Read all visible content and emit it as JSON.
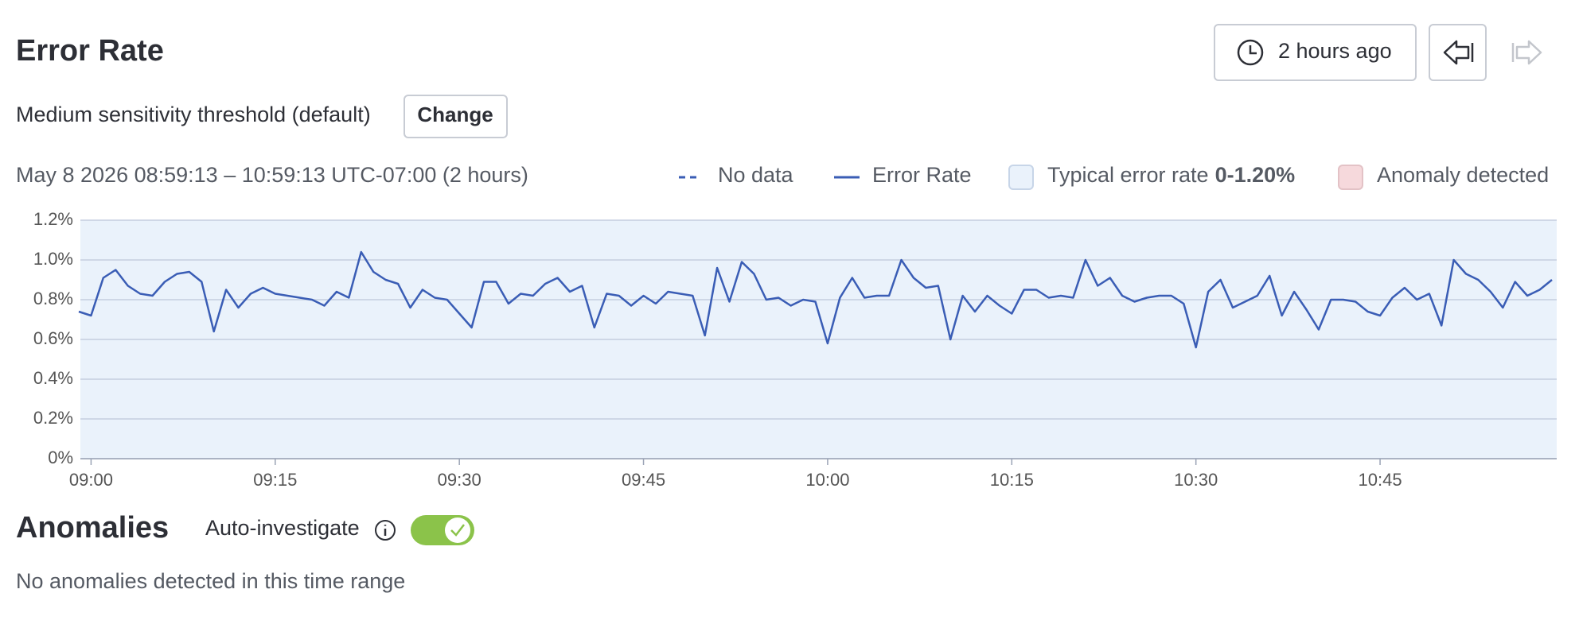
{
  "header": {
    "title": "Error Rate",
    "time_button": "2 hours ago"
  },
  "threshold": {
    "text": "Medium sensitivity threshold (default)",
    "button": "Change"
  },
  "chart_data": {
    "type": "line",
    "subtitle": "May 8 2026 08:59:13 – 10:59:13 UTC-07:00 (2 hours)",
    "legend": {
      "no_data": "No data",
      "typical": "Typical error rate",
      "typical_range": "0-1.20%",
      "anomaly": "Anomaly detected"
    },
    "band": [
      0,
      1.2
    ],
    "band_color": "#eaf2fb",
    "anomaly_color": "#f6d9dc",
    "x": [
      "08:59",
      "09:00",
      "09:01",
      "09:02",
      "09:03",
      "09:04",
      "09:05",
      "09:06",
      "09:07",
      "09:08",
      "09:09",
      "09:10",
      "09:11",
      "09:12",
      "09:13",
      "09:14",
      "09:15",
      "09:16",
      "09:17",
      "09:18",
      "09:19",
      "09:20",
      "09:21",
      "09:22",
      "09:23",
      "09:24",
      "09:25",
      "09:26",
      "09:27",
      "09:28",
      "09:29",
      "09:30",
      "09:31",
      "09:32",
      "09:33",
      "09:34",
      "09:35",
      "09:36",
      "09:37",
      "09:38",
      "09:39",
      "09:40",
      "09:41",
      "09:42",
      "09:43",
      "09:44",
      "09:45",
      "09:46",
      "09:47",
      "09:48",
      "09:49",
      "09:50",
      "09:51",
      "09:52",
      "09:53",
      "09:54",
      "09:55",
      "09:56",
      "09:57",
      "09:58",
      "09:59",
      "10:00",
      "10:01",
      "10:02",
      "10:03",
      "10:04",
      "10:05",
      "10:06",
      "10:07",
      "10:08",
      "10:09",
      "10:10",
      "10:11",
      "10:12",
      "10:13",
      "10:14",
      "10:15",
      "10:16",
      "10:17",
      "10:18",
      "10:19",
      "10:20",
      "10:21",
      "10:22",
      "10:23",
      "10:24",
      "10:25",
      "10:26",
      "10:27",
      "10:28",
      "10:29",
      "10:30",
      "10:31",
      "10:32",
      "10:33",
      "10:34",
      "10:35",
      "10:36",
      "10:37",
      "10:38",
      "10:39",
      "10:40",
      "10:41",
      "10:42",
      "10:43",
      "10:44",
      "10:45",
      "10:46",
      "10:47",
      "10:48",
      "10:49",
      "10:50",
      "10:51",
      "10:52",
      "10:53",
      "10:54",
      "10:55",
      "10:56",
      "10:57",
      "10:58",
      "10:59"
    ],
    "series": [
      {
        "name": "Error Rate",
        "color": "#3a5db5",
        "values": [
          0.74,
          0.72,
          0.91,
          0.95,
          0.87,
          0.83,
          0.82,
          0.89,
          0.93,
          0.94,
          0.89,
          0.64,
          0.85,
          0.76,
          0.83,
          0.86,
          0.83,
          0.82,
          0.81,
          0.8,
          0.77,
          0.84,
          0.81,
          1.04,
          0.94,
          0.9,
          0.88,
          0.76,
          0.85,
          0.81,
          0.8,
          0.73,
          0.66,
          0.89,
          0.89,
          0.78,
          0.83,
          0.82,
          0.88,
          0.91,
          0.84,
          0.87,
          0.66,
          0.83,
          0.82,
          0.77,
          0.82,
          0.78,
          0.84,
          0.83,
          0.82,
          0.62,
          0.96,
          0.79,
          0.99,
          0.93,
          0.8,
          0.81,
          0.77,
          0.8,
          0.79,
          0.58,
          0.81,
          0.91,
          0.81,
          0.82,
          0.82,
          1.0,
          0.91,
          0.86,
          0.87,
          0.6,
          0.82,
          0.74,
          0.82,
          0.77,
          0.73,
          0.85,
          0.85,
          0.81,
          0.82,
          0.81,
          1.0,
          0.87,
          0.91,
          0.82,
          0.79,
          0.81,
          0.82,
          0.82,
          0.78,
          0.56,
          0.84,
          0.9,
          0.76,
          0.79,
          0.82,
          0.92,
          0.72,
          0.84,
          0.75,
          0.65,
          0.8,
          0.8,
          0.79,
          0.74,
          0.72,
          0.81,
          0.86,
          0.8,
          0.83,
          0.67,
          1.0,
          0.93,
          0.9,
          0.84,
          0.76,
          0.89,
          0.82,
          0.85,
          0.9
        ]
      }
    ],
    "xticks": [
      "09:00",
      "09:15",
      "09:30",
      "09:45",
      "10:00",
      "10:15",
      "10:30",
      "10:45"
    ],
    "ylim": [
      0,
      1.2
    ],
    "yticks": [
      {
        "value": 0,
        "label": "0%"
      },
      {
        "value": 0.2,
        "label": "0.2%"
      },
      {
        "value": 0.4,
        "label": "0.4%"
      },
      {
        "value": 0.6,
        "label": "0.6%"
      },
      {
        "value": 0.8,
        "label": "0.8%"
      },
      {
        "value": 1.0,
        "label": "1.0%"
      },
      {
        "value": 1.2,
        "label": "1.2%"
      }
    ],
    "grid": true
  },
  "anomalies": {
    "title": "Anomalies",
    "toggle_label": "Auto-investigate",
    "empty": "No anomalies detected in this time range"
  }
}
